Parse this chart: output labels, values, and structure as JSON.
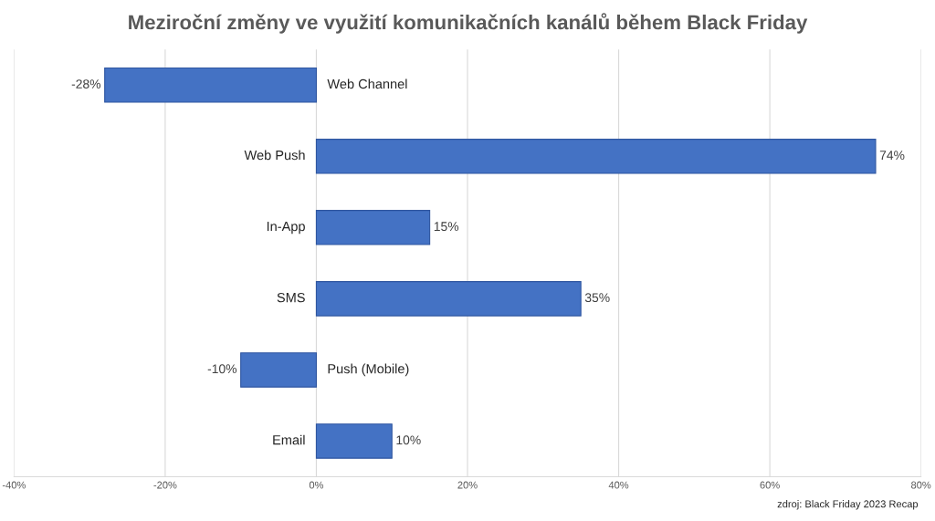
{
  "chart_data": {
    "type": "bar",
    "orientation": "horizontal",
    "title": "Meziroční změny ve využití komunikačních kanálů během Black Friday",
    "categories": [
      "Web Channel",
      "Web Push",
      "In-App",
      "SMS",
      "Push (Mobile)",
      "Email"
    ],
    "values": [
      -28,
      74,
      15,
      35,
      -10,
      10
    ],
    "value_labels": [
      "-28%",
      "74%",
      "15%",
      "35%",
      "-10%",
      "10%"
    ],
    "color": "#4472c4",
    "xlim": [
      -40,
      80
    ],
    "xticks": [
      {
        "value": -40,
        "label": "-40%"
      },
      {
        "value": -20,
        "label": "-20%"
      },
      {
        "value": 0,
        "label": "0%"
      },
      {
        "value": 20,
        "label": "20%"
      },
      {
        "value": 40,
        "label": "40%"
      },
      {
        "value": 60,
        "label": "60%"
      },
      {
        "value": 80,
        "label": "80%"
      }
    ],
    "grid": "x",
    "annotations": [
      "zdroj: Black Friday 2023 Recap"
    ]
  }
}
